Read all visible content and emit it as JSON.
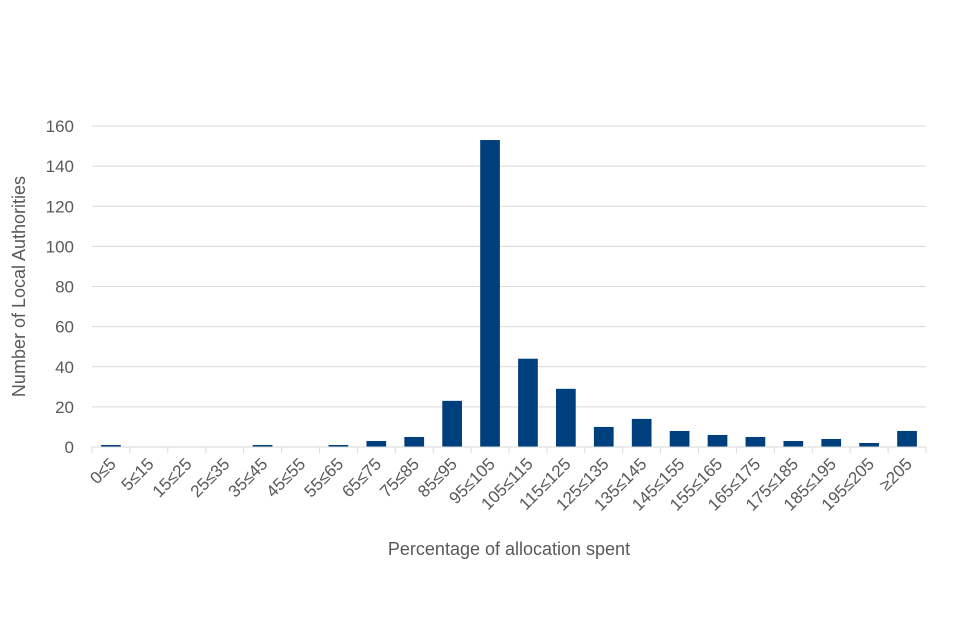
{
  "chart_data": {
    "type": "bar",
    "title": "",
    "xlabel": "Percentage of allocation spent",
    "ylabel": "Number of Local Authorities",
    "ylim": [
      0,
      160
    ],
    "yticks": [
      0,
      20,
      40,
      60,
      80,
      100,
      120,
      140,
      160
    ],
    "grid": true,
    "bar_color": "#003f7d",
    "categories": [
      "0≤5",
      "5≤15",
      "15≤25",
      "25≤35",
      "35≤45",
      "45≤55",
      "55≤65",
      "65≤75",
      "75≤85",
      "85≤95",
      "95≤105",
      "105≤115",
      "115≤125",
      "125≤135",
      "135≤145",
      "145≤155",
      "155≤165",
      "165≤175",
      "175≤185",
      "185≤195",
      "195≤205",
      "≥205"
    ],
    "values": [
      1,
      0,
      0,
      0,
      1,
      0,
      1,
      3,
      5,
      23,
      153,
      44,
      29,
      10,
      14,
      8,
      6,
      5,
      3,
      4,
      2,
      8
    ]
  }
}
